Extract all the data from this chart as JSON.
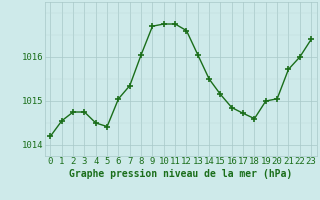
{
  "hours": [
    0,
    1,
    2,
    3,
    4,
    5,
    6,
    7,
    8,
    9,
    10,
    11,
    12,
    13,
    14,
    15,
    16,
    17,
    18,
    19,
    20,
    21,
    22,
    23
  ],
  "pressure": [
    1014.2,
    1014.55,
    1014.75,
    1014.75,
    1014.5,
    1014.42,
    1015.05,
    1015.35,
    1016.05,
    1016.7,
    1016.75,
    1016.75,
    1016.6,
    1016.05,
    1015.5,
    1015.15,
    1014.85,
    1014.72,
    1014.6,
    1015.0,
    1015.05,
    1015.72,
    1016.0,
    1016.4
  ],
  "line_color": "#1a6e1a",
  "marker": "+",
  "bg_color": "#ceeaea",
  "grid_color_major": "#a8c8c8",
  "grid_color_minor": "#bcd8d8",
  "xlabel": "Graphe pression niveau de la mer (hPa)",
  "ylim": [
    1013.75,
    1017.25
  ],
  "yticks": [
    1014,
    1015,
    1016
  ],
  "xlim": [
    -0.5,
    23.5
  ],
  "xticks": [
    0,
    1,
    2,
    3,
    4,
    5,
    6,
    7,
    8,
    9,
    10,
    11,
    12,
    13,
    14,
    15,
    16,
    17,
    18,
    19,
    20,
    21,
    22,
    23
  ],
  "tick_fontsize": 6.5,
  "xlabel_fontsize": 7.0,
  "linewidth": 1.0,
  "markersize": 5,
  "markeredgewidth": 1.2
}
